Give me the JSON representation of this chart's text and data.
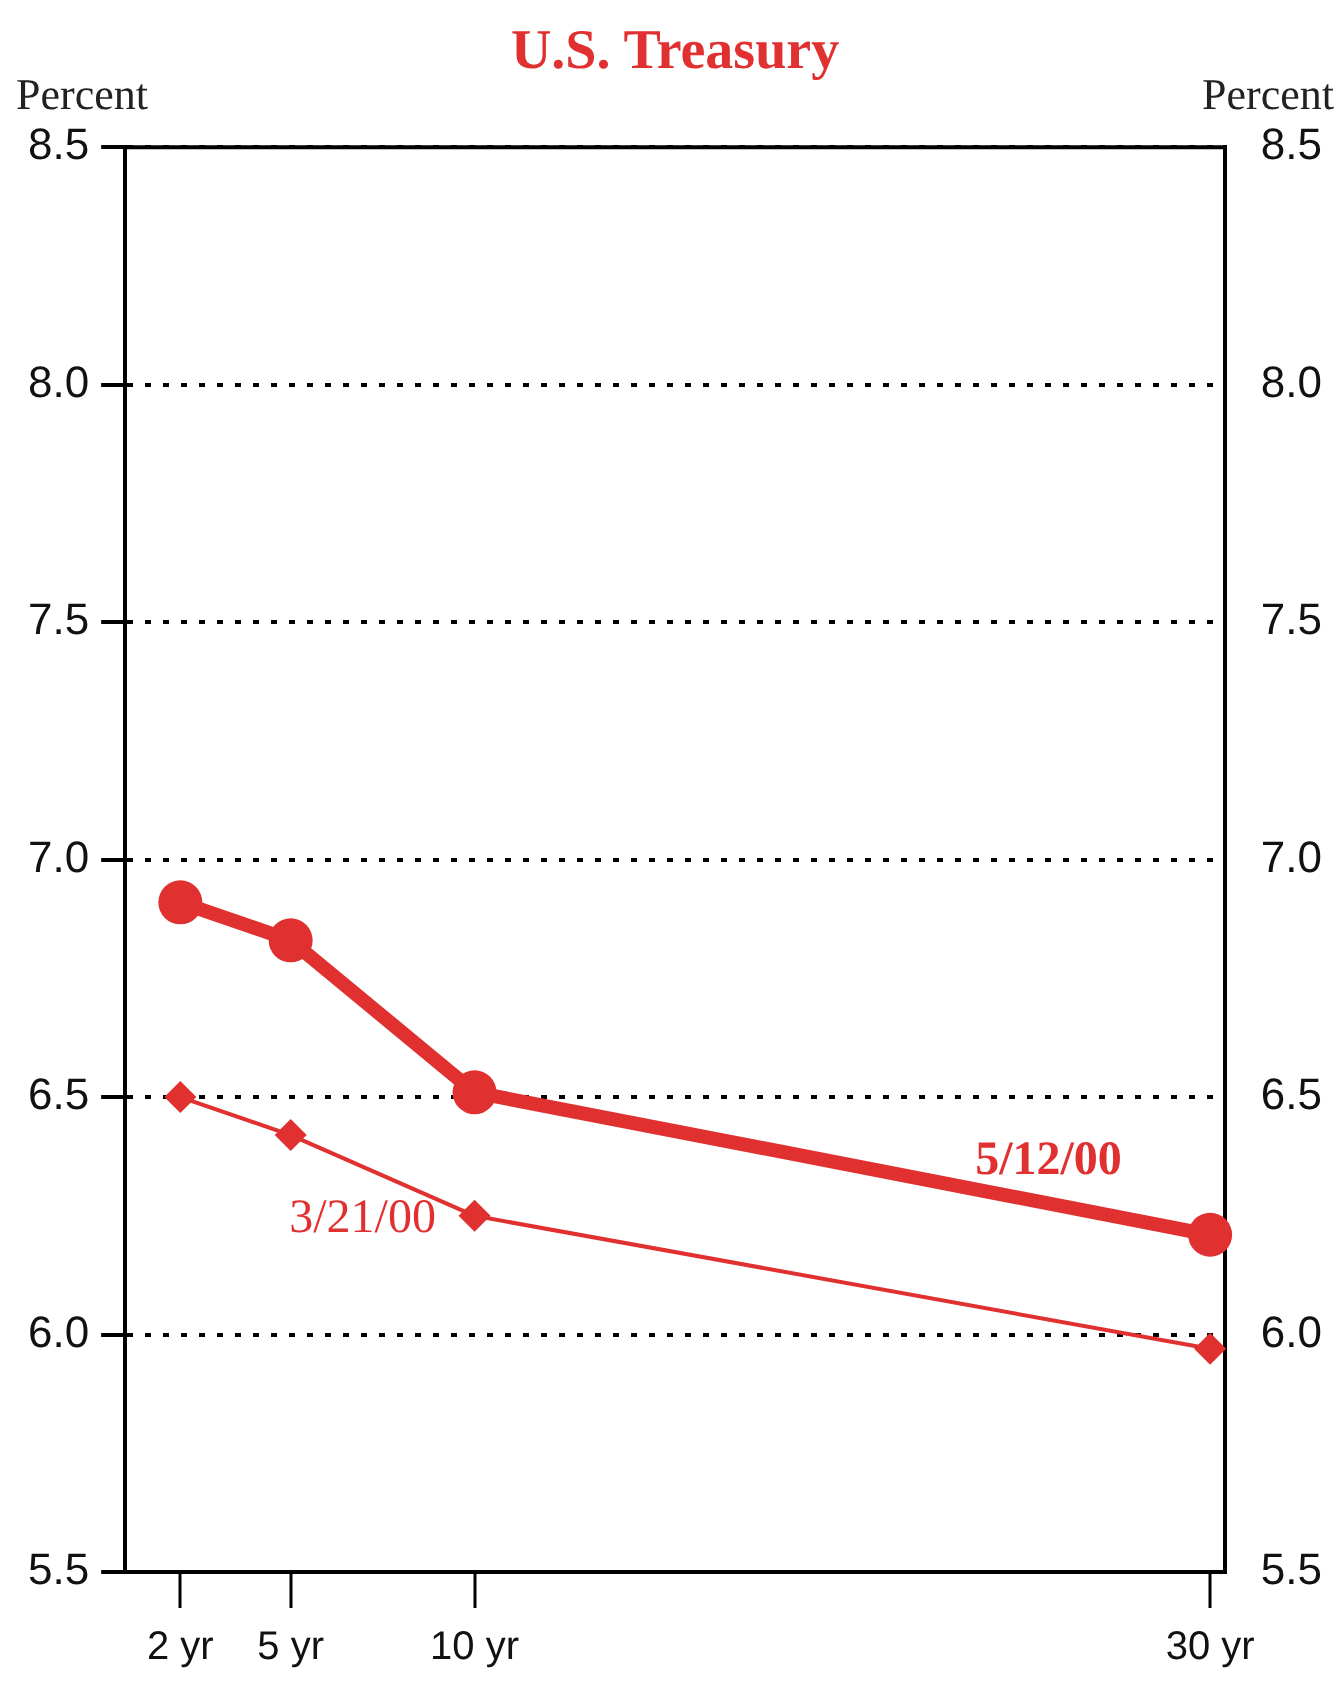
{
  "chart_data": {
    "type": "line",
    "title": "U.S. Treasury",
    "ylabel": "Percent",
    "y2label": "Percent",
    "x": [
      2,
      5,
      10,
      30
    ],
    "xlim": [
      0.5,
      30.4
    ],
    "xticks": [
      {
        "value": 2,
        "label": "2 yr"
      },
      {
        "value": 5,
        "label": "5 yr"
      },
      {
        "value": 10,
        "label": "10 yr"
      },
      {
        "value": 30,
        "label": "30 yr"
      }
    ],
    "ylim": [
      5.5,
      8.5
    ],
    "yticks": [
      5.5,
      {
        "value": 6,
        "label": "6.0"
      },
      6.5,
      {
        "value": 7,
        "label": "7.0"
      },
      7.5,
      {
        "value": 8,
        "label": "8.0"
      },
      8.5
    ],
    "y2lim": [
      5.5,
      8.5
    ],
    "y2ticks": [
      5.5,
      {
        "value": 6,
        "label": "6.0"
      },
      6.5,
      {
        "value": 7,
        "label": "7.0"
      },
      7.5,
      {
        "value": 8,
        "label": "8.0"
      },
      8.5
    ],
    "grid": "y",
    "legend": false,
    "series": [
      {
        "name": "5/12/00",
        "color": "#e03030",
        "values": [
          6.91,
          6.83,
          6.51,
          6.21
        ],
        "marker": "circle"
      },
      {
        "name": "3/21/00",
        "color": "#e03030",
        "values": [
          6.5,
          6.42,
          6.25,
          5.97
        ],
        "marker": "diamond"
      }
    ]
  }
}
